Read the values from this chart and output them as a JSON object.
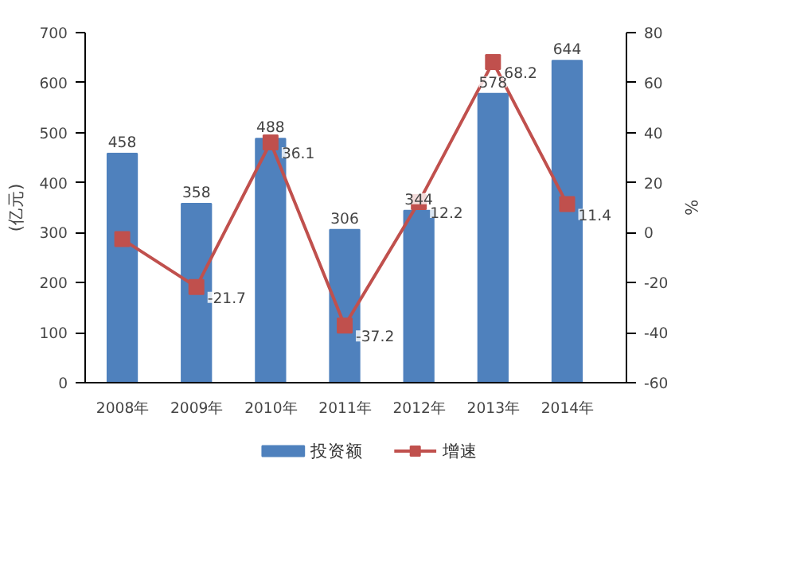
{
  "chart_data": {
    "type": "bar",
    "categories": [
      "2008年",
      "2009年",
      "2010年",
      "2011年",
      "2012年",
      "2013年",
      "2014年"
    ],
    "ylabel": "(亿元)",
    "y2label": "%",
    "ylim": [
      0,
      700
    ],
    "yticks": [
      0,
      100,
      200,
      300,
      400,
      500,
      600,
      700
    ],
    "y2lim": [
      -60,
      80
    ],
    "y2ticks": [
      -60,
      -40,
      -20,
      0,
      20,
      40,
      60,
      80
    ],
    "series": [
      {
        "name": "投资额",
        "color": "#4f81bd",
        "values": [
          458,
          358,
          488,
          306,
          344,
          578,
          644
        ],
        "value_labels": [
          "458",
          "358",
          "488",
          "306",
          "344",
          "578",
          "644"
        ]
      },
      {
        "name": "增速",
        "type": "line",
        "axis": "y2",
        "color": "#c0504d",
        "marker": "square",
        "values": [
          -2.6,
          -21.7,
          36.1,
          -37.2,
          12.2,
          68.2,
          11.4
        ],
        "value_labels": [
          null,
          "-21.7",
          "36.1",
          "-37.2",
          "12.2",
          "68.2",
          "11.4"
        ]
      }
    ],
    "grid": false,
    "legend": "bottom"
  }
}
